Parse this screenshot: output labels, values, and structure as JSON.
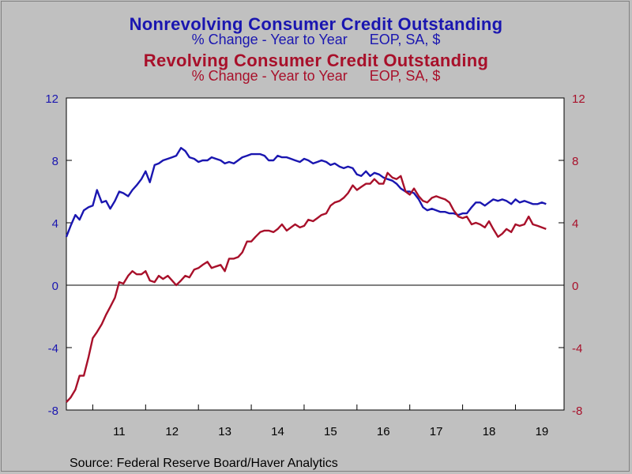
{
  "chart_data": {
    "type": "line",
    "titles": [
      {
        "title": "Nonrevolving Consumer Credit Outstanding",
        "subtitle_left": "% Change - Year to Year",
        "subtitle_right": "EOP, SA, $",
        "color": "#1a16b0"
      },
      {
        "title": "Revolving Consumer Credit Outstanding",
        "subtitle_left": "% Change - Year to Year",
        "subtitle_right": "EOP, SA, $",
        "color": "#a8102a"
      }
    ],
    "source": "Source:  Federal Reserve Board/Haver Analytics",
    "x_ticks": [
      "11",
      "12",
      "13",
      "14",
      "15",
      "16",
      "17",
      "18",
      "19"
    ],
    "xlim": [
      2010.5,
      2019.92
    ],
    "y_left": {
      "ticks": [
        "12",
        "8",
        "4",
        "0",
        "-4",
        "-8"
      ],
      "lim": [
        -8,
        12
      ],
      "color": "#1a16b0"
    },
    "y_right": {
      "ticks": [
        "12",
        "8",
        "4",
        "0",
        "-4",
        "-8"
      ],
      "lim": [
        -8,
        12
      ],
      "color": "#a8102a"
    },
    "zero_line": true,
    "colors": {
      "background": "#c0c0c0",
      "plot_bg": "#ffffff"
    },
    "series": [
      {
        "name": "Nonrevolving Consumer Credit Outstanding",
        "color": "#1a16b0",
        "x": [
          2010.5,
          2010.58,
          2010.67,
          2010.75,
          2010.83,
          2010.92,
          2011.0,
          2011.08,
          2011.17,
          2011.25,
          2011.33,
          2011.42,
          2011.5,
          2011.58,
          2011.67,
          2011.75,
          2011.83,
          2011.92,
          2012.0,
          2012.08,
          2012.17,
          2012.25,
          2012.33,
          2012.42,
          2012.5,
          2012.58,
          2012.67,
          2012.75,
          2012.83,
          2012.92,
          2013.0,
          2013.08,
          2013.17,
          2013.25,
          2013.33,
          2013.42,
          2013.5,
          2013.58,
          2013.67,
          2013.75,
          2013.83,
          2013.92,
          2014.0,
          2014.08,
          2014.17,
          2014.25,
          2014.33,
          2014.42,
          2014.5,
          2014.58,
          2014.67,
          2014.75,
          2014.83,
          2014.92,
          2015.0,
          2015.08,
          2015.17,
          2015.25,
          2015.33,
          2015.42,
          2015.5,
          2015.58,
          2015.67,
          2015.75,
          2015.83,
          2015.92,
          2016.0,
          2016.08,
          2016.17,
          2016.25,
          2016.33,
          2016.42,
          2016.5,
          2016.58,
          2016.67,
          2016.75,
          2016.83,
          2016.92,
          2017.0,
          2017.08,
          2017.17,
          2017.25,
          2017.33,
          2017.42,
          2017.5,
          2017.58,
          2017.67,
          2017.75,
          2017.83,
          2017.92,
          2018.0,
          2018.08,
          2018.17,
          2018.25,
          2018.33,
          2018.42,
          2018.5,
          2018.58,
          2018.67,
          2018.75,
          2018.83,
          2018.92,
          2019.0,
          2019.08,
          2019.17,
          2019.25,
          2019.33,
          2019.42,
          2019.5,
          2019.58
        ],
        "values": [
          3.1,
          3.8,
          4.5,
          4.2,
          4.8,
          5.0,
          5.1,
          6.1,
          5.3,
          5.4,
          4.9,
          5.4,
          6.0,
          5.9,
          5.7,
          6.1,
          6.4,
          6.8,
          7.3,
          6.6,
          7.7,
          7.8,
          8.0,
          8.1,
          8.2,
          8.3,
          8.8,
          8.6,
          8.2,
          8.1,
          7.9,
          8.0,
          8.0,
          8.2,
          8.1,
          8.0,
          7.8,
          7.9,
          7.8,
          8.0,
          8.2,
          8.3,
          8.4,
          8.4,
          8.4,
          8.3,
          8.0,
          8.0,
          8.3,
          8.2,
          8.2,
          8.1,
          8.0,
          7.9,
          8.1,
          8.0,
          7.8,
          7.9,
          8.0,
          7.9,
          7.7,
          7.8,
          7.6,
          7.5,
          7.6,
          7.5,
          7.1,
          7.0,
          7.3,
          7.0,
          7.2,
          7.1,
          6.9,
          6.8,
          6.7,
          6.5,
          6.2,
          6.0,
          6.0,
          5.9,
          5.5,
          5.0,
          4.8,
          4.9,
          4.8,
          4.7,
          4.7,
          4.6,
          4.6,
          4.5,
          4.6,
          4.6,
          5.0,
          5.3,
          5.3,
          5.1,
          5.3,
          5.5,
          5.4,
          5.5,
          5.4,
          5.2,
          5.5,
          5.3,
          5.4,
          5.3,
          5.2,
          5.2,
          5.3,
          5.2
        ]
      },
      {
        "name": "Revolving Consumer Credit Outstanding",
        "color": "#a8102a",
        "x": [
          2010.5,
          2010.58,
          2010.67,
          2010.75,
          2010.83,
          2010.92,
          2011.0,
          2011.08,
          2011.17,
          2011.25,
          2011.33,
          2011.42,
          2011.5,
          2011.58,
          2011.67,
          2011.75,
          2011.83,
          2011.92,
          2012.0,
          2012.08,
          2012.17,
          2012.25,
          2012.33,
          2012.42,
          2012.5,
          2012.58,
          2012.67,
          2012.75,
          2012.83,
          2012.92,
          2013.0,
          2013.08,
          2013.17,
          2013.25,
          2013.33,
          2013.42,
          2013.5,
          2013.58,
          2013.67,
          2013.75,
          2013.83,
          2013.92,
          2014.0,
          2014.08,
          2014.17,
          2014.25,
          2014.33,
          2014.42,
          2014.5,
          2014.58,
          2014.67,
          2014.75,
          2014.83,
          2014.92,
          2015.0,
          2015.08,
          2015.17,
          2015.25,
          2015.33,
          2015.42,
          2015.5,
          2015.58,
          2015.67,
          2015.75,
          2015.83,
          2015.92,
          2016.0,
          2016.08,
          2016.17,
          2016.25,
          2016.33,
          2016.42,
          2016.5,
          2016.58,
          2016.67,
          2016.75,
          2016.83,
          2016.92,
          2017.0,
          2017.08,
          2017.17,
          2017.25,
          2017.33,
          2017.42,
          2017.5,
          2017.58,
          2017.67,
          2017.75,
          2017.83,
          2017.92,
          2018.0,
          2018.08,
          2018.17,
          2018.25,
          2018.33,
          2018.42,
          2018.5,
          2018.58,
          2018.67,
          2018.75,
          2018.83,
          2018.92,
          2019.0,
          2019.08,
          2019.17,
          2019.25,
          2019.33,
          2019.42,
          2019.5,
          2019.58
        ],
        "values": [
          -7.5,
          -7.2,
          -6.7,
          -5.8,
          -5.8,
          -4.6,
          -3.4,
          -3.0,
          -2.5,
          -1.9,
          -1.4,
          -0.8,
          0.2,
          0.1,
          0.6,
          0.9,
          0.7,
          0.7,
          0.9,
          0.3,
          0.2,
          0.6,
          0.4,
          0.6,
          0.3,
          0.0,
          0.3,
          0.6,
          0.5,
          1.0,
          1.1,
          1.3,
          1.5,
          1.1,
          1.2,
          1.3,
          0.9,
          1.7,
          1.7,
          1.8,
          2.1,
          2.8,
          2.8,
          3.1,
          3.4,
          3.5,
          3.5,
          3.4,
          3.6,
          3.9,
          3.5,
          3.7,
          3.9,
          3.7,
          3.8,
          4.2,
          4.1,
          4.3,
          4.5,
          4.6,
          5.1,
          5.3,
          5.4,
          5.6,
          5.9,
          6.4,
          6.1,
          6.3,
          6.5,
          6.5,
          6.8,
          6.5,
          6.5,
          7.2,
          6.9,
          6.8,
          7.0,
          6.0,
          5.8,
          6.2,
          5.7,
          5.4,
          5.3,
          5.6,
          5.7,
          5.6,
          5.5,
          5.3,
          4.8,
          4.4,
          4.3,
          4.4,
          3.9,
          4.0,
          3.9,
          3.7,
          4.1,
          3.6,
          3.1,
          3.3,
          3.6,
          3.4,
          3.9,
          3.8,
          3.9,
          4.4,
          3.9,
          3.8,
          3.7,
          3.6
        ]
      }
    ]
  }
}
